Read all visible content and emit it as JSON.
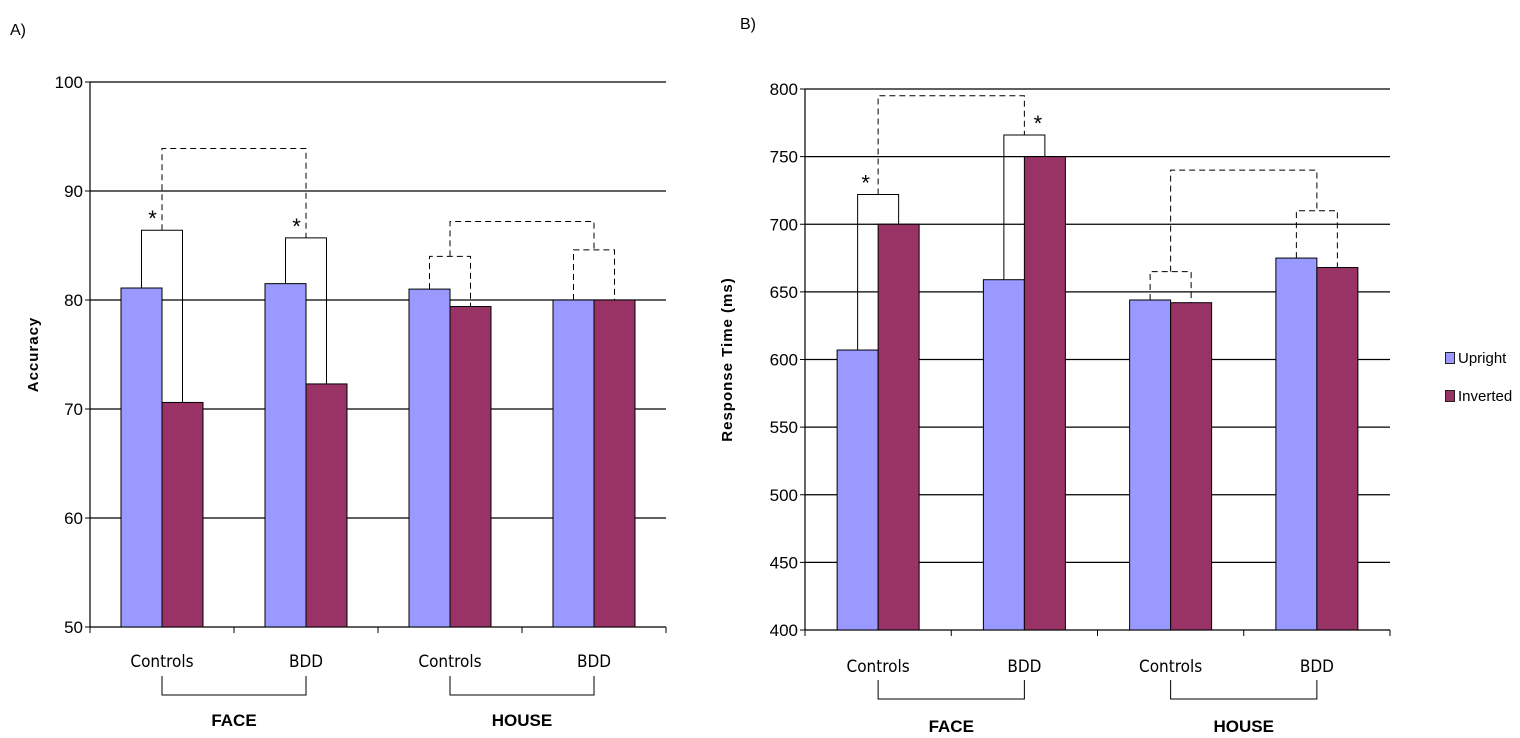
{
  "panels": [
    {
      "label": "A)",
      "chart_data": {
        "type": "bar",
        "ylabel": "Accuracy",
        "ylim": [
          50,
          100
        ],
        "yticks": [
          50,
          60,
          70,
          80,
          90,
          100
        ],
        "grid": true,
        "categories": [
          "Controls",
          "BDD",
          "Controls",
          "BDD"
        ],
        "groups": [
          {
            "label": "FACE",
            "categories": [
              0,
              1
            ]
          },
          {
            "label": "HOUSE",
            "categories": [
              2,
              3
            ]
          }
        ],
        "series": [
          {
            "name": "Upright",
            "color": "#9999ff",
            "values": [
              81.1,
              81.5,
              81.0,
              80.0
            ]
          },
          {
            "name": "Inverted",
            "color": "#993366",
            "values": [
              70.6,
              72.3,
              79.4,
              80.0
            ]
          }
        ],
        "annotations": [
          {
            "type": "pair_bracket",
            "category": 0,
            "value": 86.4,
            "style": "solid",
            "label": "*"
          },
          {
            "type": "pair_bracket",
            "category": 1,
            "value": 85.7,
            "style": "solid",
            "label": "*"
          },
          {
            "type": "pair_bracket",
            "category": 2,
            "value": 84.0,
            "style": "dashed",
            "label": ""
          },
          {
            "type": "pair_bracket",
            "category": 3,
            "value": 84.6,
            "style": "dashed",
            "label": ""
          },
          {
            "type": "group_bracket",
            "from": 0,
            "to": 1,
            "value": 93.9,
            "style": "dashed"
          },
          {
            "type": "group_bracket",
            "from": 2,
            "to": 3,
            "value": 87.2,
            "style": "dashed"
          }
        ]
      }
    },
    {
      "label": "B)",
      "chart_data": {
        "type": "bar",
        "ylabel": "Response Time (ms)",
        "ylim": [
          400,
          800
        ],
        "yticks": [
          400,
          450,
          500,
          550,
          600,
          650,
          700,
          750,
          800
        ],
        "grid": true,
        "categories": [
          "Controls",
          "BDD",
          "Controls",
          "BDD"
        ],
        "groups": [
          {
            "label": "FACE",
            "categories": [
              0,
              1
            ]
          },
          {
            "label": "HOUSE",
            "categories": [
              2,
              3
            ]
          }
        ],
        "series": [
          {
            "name": "Upright",
            "color": "#9999ff",
            "values": [
              607,
              659,
              644,
              675
            ]
          },
          {
            "name": "Inverted",
            "color": "#993366",
            "values": [
              700,
              750,
              642,
              668
            ]
          }
        ],
        "annotations": [
          {
            "type": "pair_bracket",
            "category": 0,
            "value": 722,
            "style": "solid",
            "label": "*"
          },
          {
            "type": "pair_bracket",
            "category": 1,
            "value": 766,
            "style": "solid",
            "label": "*"
          },
          {
            "type": "pair_bracket",
            "category": 2,
            "value": 665,
            "style": "dashed",
            "label": ""
          },
          {
            "type": "pair_bracket",
            "category": 3,
            "value": 710,
            "style": "dashed",
            "label": ""
          },
          {
            "type": "group_bracket",
            "from": 0,
            "to": 1,
            "value": 795,
            "style": "dashed"
          },
          {
            "type": "group_bracket",
            "from": 2,
            "to": 3,
            "value": 740,
            "style": "dashed"
          }
        ]
      }
    }
  ],
  "legend": {
    "placement": "right",
    "items": [
      {
        "label": "Upright",
        "color": "#9999ff"
      },
      {
        "label": "Inverted",
        "color": "#993366"
      }
    ]
  }
}
